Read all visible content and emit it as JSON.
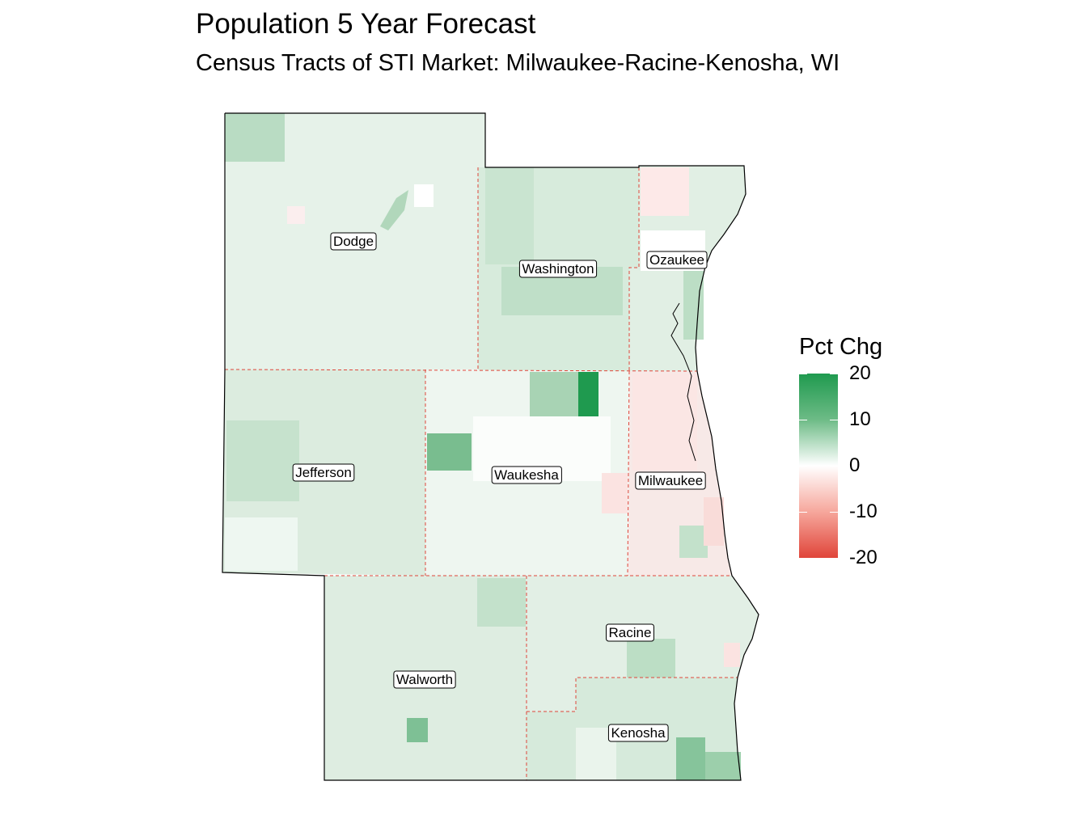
{
  "title": "Population 5 Year Forecast",
  "subtitle": "Census Tracts of STI Market: Milwaukee-Racine-Kenosha, WI",
  "legend": {
    "title": "Pct Chg",
    "ticks": [
      "20",
      "10",
      "0",
      "-10",
      "-20"
    ],
    "range": [
      -20,
      20
    ],
    "colors": {
      "high": "#1f9a4f",
      "mid": "#ffffff",
      "low": "#e0453a"
    }
  },
  "county_border_color": "#e0453a",
  "counties": [
    {
      "name": "Dodge",
      "pct_chg": 5
    },
    {
      "name": "Washington",
      "pct_chg": 8
    },
    {
      "name": "Ozaukee",
      "pct_chg": 4
    },
    {
      "name": "Jefferson",
      "pct_chg": 6
    },
    {
      "name": "Waukesha",
      "pct_chg": 3
    },
    {
      "name": "Milwaukee",
      "pct_chg": -2
    },
    {
      "name": "Walworth",
      "pct_chg": 5
    },
    {
      "name": "Racine",
      "pct_chg": 4
    },
    {
      "name": "Kenosha",
      "pct_chg": 7
    }
  ]
}
